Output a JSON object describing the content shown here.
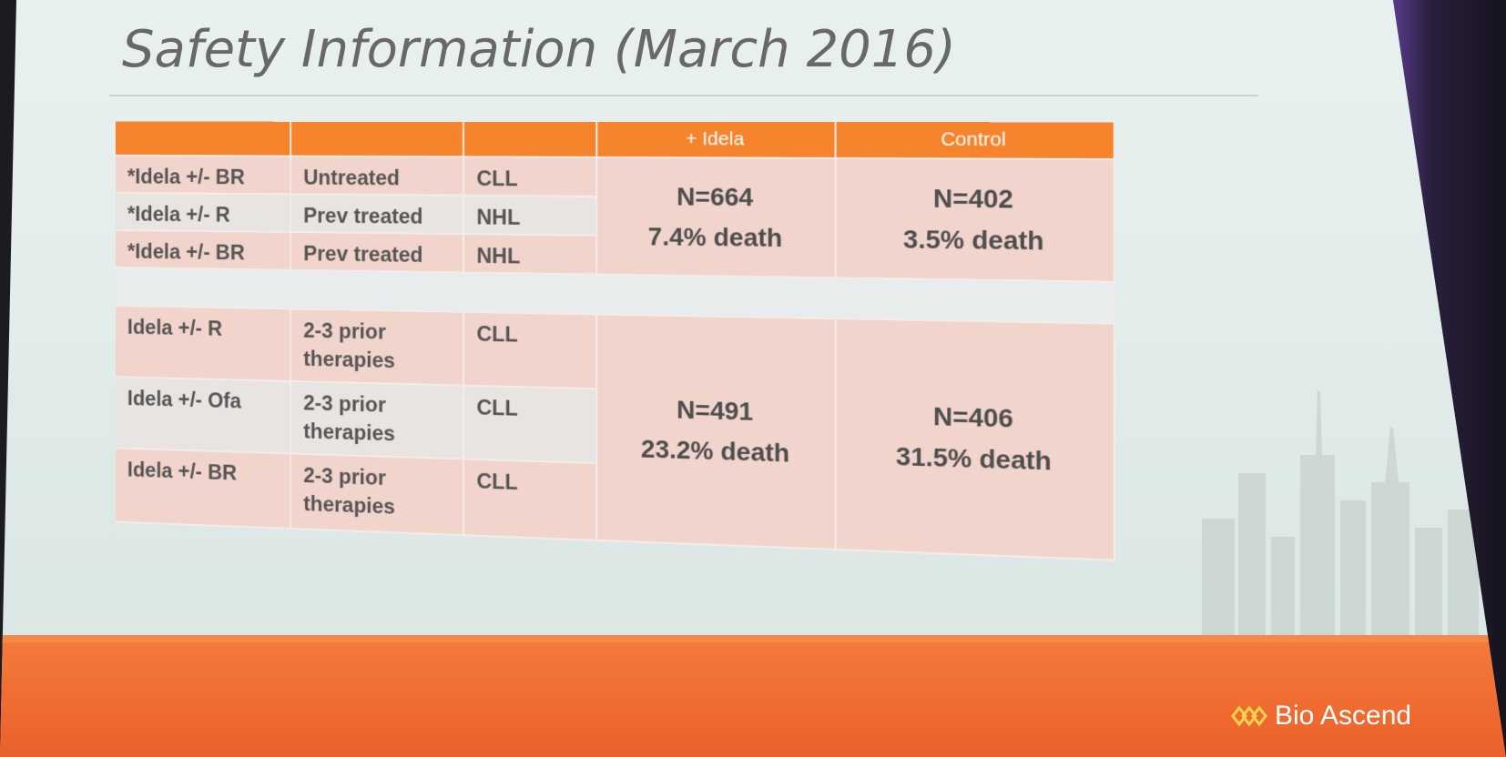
{
  "slide": {
    "title": "Safety Information (March 2016)"
  },
  "table": {
    "headers": [
      "",
      "",
      "",
      "+ Idela",
      "Control"
    ],
    "group1": {
      "rows": [
        [
          "*Idela +/- BR",
          "Untreated",
          "CLL"
        ],
        [
          "*Idela +/- R",
          "Prev treated",
          "NHL"
        ],
        [
          "*Idela +/- BR",
          "Prev treated",
          "NHL"
        ]
      ],
      "idela": {
        "n": "N=664",
        "death": "7.4% death"
      },
      "control": {
        "n": "N=402",
        "death": "3.5% death"
      }
    },
    "group2": {
      "rows": [
        [
          "Idela +/- R",
          "2-3 prior therapies",
          "CLL"
        ],
        [
          "Idela +/- Ofa",
          "2-3 prior therapies",
          "CLL"
        ],
        [
          "Idela +/- BR",
          "2-3 prior therapies",
          "CLL"
        ]
      ],
      "idela": {
        "n": "N=491",
        "death": "23.2% death"
      },
      "control": {
        "n": "N=406",
        "death": "31.5% death"
      }
    }
  },
  "footer": {
    "logo_text": "Bio Ascend",
    "logo_icon": "bio-ascend-logo-icon"
  },
  "colors": {
    "accent": "#f5842d",
    "cell_pink": "#f1d4cb",
    "cell_light": "#e8e4e2",
    "footer": "#ef6a30"
  }
}
